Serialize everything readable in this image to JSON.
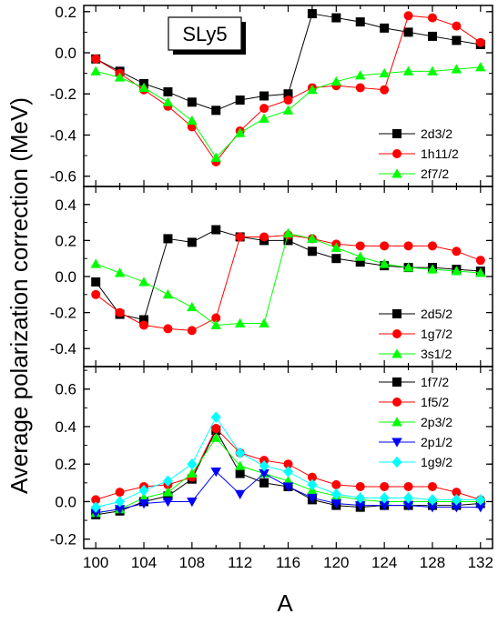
{
  "figure": {
    "ylabel": "Average polarization correction (MeV)",
    "xlabel": "A",
    "x_ticks": [
      "100",
      "104",
      "108",
      "112",
      "116",
      "120",
      "124",
      "128",
      "132"
    ],
    "label_box": "SLy5"
  },
  "colors": {
    "black": "#000000",
    "red": "#ff0000",
    "green": "#00ff00",
    "blue": "#0000ff",
    "cyan": "#00ffff"
  },
  "chart_data": [
    {
      "type": "line",
      "panel": "top",
      "xlim": [
        99,
        133
      ],
      "ylim": [
        -0.65,
        0.23
      ],
      "y_ticks": [
        0.2,
        0.0,
        -0.2,
        -0.4,
        -0.6
      ],
      "y_tick_labels": [
        "0.2",
        "0.0",
        "-0.2",
        "-0.4",
        "-0.6"
      ],
      "legend_position": "bottom-right",
      "series": [
        {
          "name": "2d3/2",
          "color": "#000000",
          "marker": "square",
          "x": [
            100,
            102,
            104,
            106,
            108,
            110,
            112,
            114,
            116,
            118,
            120,
            122,
            124,
            126,
            128,
            130,
            132
          ],
          "y": [
            -0.03,
            -0.09,
            -0.15,
            -0.19,
            -0.24,
            -0.28,
            -0.23,
            -0.21,
            -0.2,
            0.19,
            0.17,
            0.15,
            0.12,
            0.1,
            0.08,
            0.06,
            0.04
          ]
        },
        {
          "name": "1h11/2",
          "color": "#ff0000",
          "marker": "circle",
          "x": [
            100,
            102,
            104,
            106,
            108,
            110,
            112,
            114,
            116,
            118,
            120,
            122,
            124,
            126,
            128,
            130,
            132
          ],
          "y": [
            -0.03,
            -0.1,
            -0.18,
            -0.26,
            -0.36,
            -0.53,
            -0.38,
            -0.27,
            -0.23,
            -0.17,
            -0.16,
            -0.17,
            -0.18,
            0.18,
            0.17,
            0.13,
            0.05
          ]
        },
        {
          "name": "2f7/2",
          "color": "#00ff00",
          "marker": "triangle-up",
          "x": [
            100,
            102,
            104,
            106,
            108,
            110,
            112,
            114,
            116,
            118,
            120,
            122,
            124,
            126,
            128,
            130,
            132
          ],
          "y": [
            -0.09,
            -0.12,
            -0.17,
            -0.24,
            -0.33,
            -0.51,
            -0.39,
            -0.32,
            -0.28,
            -0.18,
            -0.14,
            -0.11,
            -0.1,
            -0.09,
            -0.09,
            -0.08,
            -0.07
          ]
        }
      ]
    },
    {
      "type": "line",
      "panel": "middle",
      "xlim": [
        99,
        133
      ],
      "ylim": [
        -0.5,
        0.5
      ],
      "y_ticks": [
        0.4,
        0.2,
        0.0,
        -0.2,
        -0.4
      ],
      "y_tick_labels": [
        "0.4",
        "0.2",
        "0.0",
        "-0.2",
        "-0.4"
      ],
      "legend_position": "bottom-right",
      "series": [
        {
          "name": "2d5/2",
          "color": "#000000",
          "marker": "square",
          "x": [
            100,
            102,
            104,
            106,
            108,
            110,
            112,
            114,
            116,
            118,
            120,
            122,
            124,
            126,
            128,
            130,
            132
          ],
          "y": [
            -0.03,
            -0.21,
            -0.24,
            0.21,
            0.19,
            0.26,
            0.22,
            0.2,
            0.2,
            0.14,
            0.1,
            0.08,
            0.06,
            0.05,
            0.05,
            0.04,
            0.03
          ]
        },
        {
          "name": "1g7/2",
          "color": "#ff0000",
          "marker": "circle",
          "x": [
            100,
            102,
            104,
            106,
            108,
            110,
            112,
            114,
            116,
            118,
            120,
            122,
            124,
            126,
            128,
            130,
            132
          ],
          "y": [
            -0.1,
            -0.2,
            -0.27,
            -0.29,
            -0.3,
            -0.23,
            0.22,
            0.22,
            0.23,
            0.21,
            0.18,
            0.17,
            0.17,
            0.17,
            0.17,
            0.14,
            0.09
          ]
        },
        {
          "name": "3s1/2",
          "color": "#00ff00",
          "marker": "triangle-up",
          "x": [
            100,
            102,
            104,
            106,
            108,
            110,
            112,
            114,
            116,
            118,
            120,
            122,
            124,
            126,
            128,
            130,
            132
          ],
          "y": [
            0.07,
            0.02,
            -0.03,
            -0.1,
            -0.17,
            -0.27,
            -0.26,
            -0.26,
            0.24,
            0.21,
            0.16,
            0.11,
            0.07,
            0.05,
            0.04,
            0.03,
            0.02
          ]
        }
      ]
    },
    {
      "type": "line",
      "panel": "bottom",
      "xlim": [
        99,
        133
      ],
      "ylim": [
        -0.25,
        0.72
      ],
      "y_ticks": [
        0.6,
        0.4,
        0.2,
        0.0,
        -0.2
      ],
      "y_tick_labels": [
        "0.6",
        "0.4",
        "0.2",
        "0.0",
        "-0.2"
      ],
      "legend_position": "top-right",
      "series": [
        {
          "name": "1f7/2",
          "color": "#000000",
          "marker": "square",
          "x": [
            100,
            102,
            104,
            106,
            108,
            110,
            112,
            114,
            116,
            118,
            120,
            122,
            124,
            126,
            128,
            130,
            132
          ],
          "y": [
            -0.07,
            -0.05,
            0.0,
            0.03,
            0.12,
            0.38,
            0.15,
            0.1,
            0.08,
            0.01,
            -0.02,
            -0.03,
            -0.02,
            -0.02,
            -0.02,
            -0.02,
            -0.01
          ]
        },
        {
          "name": "1f5/2",
          "color": "#ff0000",
          "marker": "circle",
          "x": [
            100,
            102,
            104,
            106,
            108,
            110,
            112,
            114,
            116,
            118,
            120,
            122,
            124,
            126,
            128,
            130,
            132
          ],
          "y": [
            0.01,
            0.05,
            0.08,
            0.09,
            0.13,
            0.39,
            0.26,
            0.22,
            0.2,
            0.13,
            0.09,
            0.08,
            0.08,
            0.08,
            0.08,
            0.05,
            0.01
          ]
        },
        {
          "name": "2p3/2",
          "color": "#00ff00",
          "marker": "triangle-up",
          "x": [
            100,
            102,
            104,
            106,
            108,
            110,
            112,
            114,
            116,
            118,
            120,
            122,
            124,
            126,
            128,
            130,
            132
          ],
          "y": [
            -0.06,
            -0.04,
            0.02,
            0.05,
            0.15,
            0.34,
            0.19,
            0.15,
            0.11,
            0.06,
            0.03,
            0.01,
            0.0,
            0.0,
            0.0,
            0.0,
            0.0
          ]
        },
        {
          "name": "2p1/2",
          "color": "#0000ff",
          "marker": "triangle-down",
          "x": [
            100,
            102,
            104,
            106,
            108,
            110,
            112,
            114,
            116,
            118,
            120,
            122,
            124,
            126,
            128,
            130,
            132
          ],
          "y": [
            -0.06,
            -0.04,
            -0.01,
            0.0,
            0.0,
            0.16,
            0.04,
            0.15,
            0.08,
            0.02,
            -0.01,
            -0.02,
            -0.02,
            -0.02,
            -0.03,
            -0.03,
            -0.03
          ]
        },
        {
          "name": "1g9/2",
          "color": "#00ffff",
          "marker": "diamond",
          "x": [
            100,
            102,
            104,
            106,
            108,
            110,
            112,
            114,
            116,
            118,
            120,
            122,
            124,
            126,
            128,
            130,
            132
          ],
          "y": [
            -0.03,
            0.0,
            0.06,
            0.11,
            0.2,
            0.45,
            0.26,
            0.19,
            0.16,
            0.09,
            0.04,
            0.02,
            0.02,
            0.02,
            0.01,
            0.01,
            0.01
          ]
        }
      ]
    }
  ]
}
